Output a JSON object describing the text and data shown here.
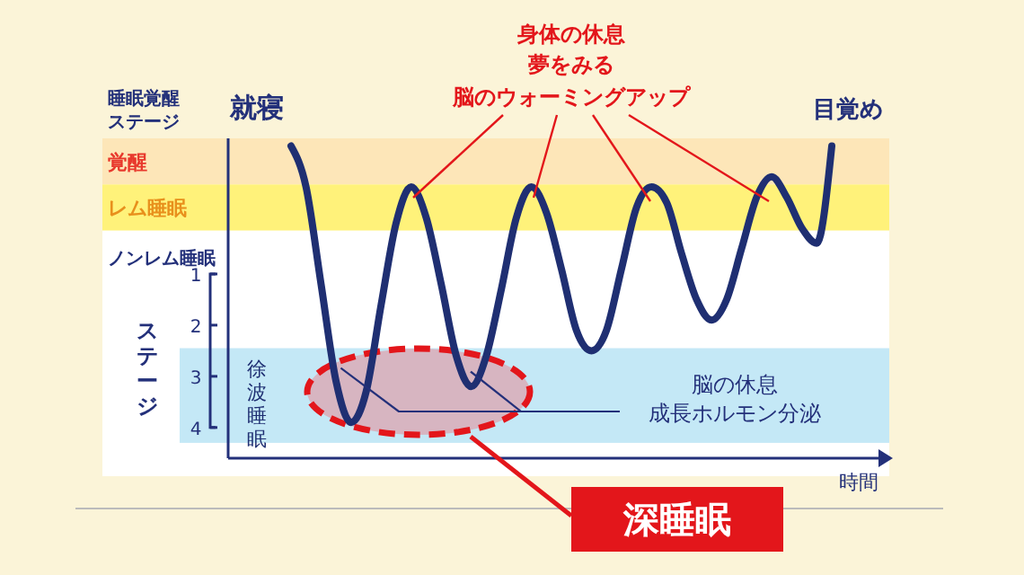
{
  "chart_data": {
    "type": "line",
    "ylabel": "睡眠覚醒ステージ",
    "xlabel": "時間",
    "categories": [
      null,
      null,
      null,
      null,
      null,
      null,
      null,
      null,
      null,
      null,
      null,
      null,
      null,
      null,
      null,
      null,
      null,
      null,
      null,
      null,
      null,
      null,
      null,
      null,
      null,
      null,
      null,
      null,
      null,
      null,
      null,
      null,
      null,
      null,
      null,
      null,
      null
    ],
    "series": [
      {
        "color": "#1f2f72",
        "values": [
          -1.5,
          -0.7,
          1.2,
          3.1,
          3.9,
          3.3,
          1.6,
          0.0,
          -0.7,
          -0.1,
          1.2,
          2.6,
          3.2,
          2.6,
          1.3,
          -0.1,
          -0.7,
          -0.2,
          0.9,
          2.1,
          2.5,
          2.1,
          0.9,
          -0.3,
          -0.7,
          -0.4,
          0.6,
          1.5,
          1.9,
          1.5,
          0.5,
          -0.5,
          -0.9,
          -0.5,
          0.1,
          0.4,
          -1.5
        ]
      }
    ],
    "ylim": [
      4.6,
      -1.65
    ],
    "yticks": [
      1,
      2,
      3,
      4
    ],
    "grid": false,
    "marker": "none",
    "line_style": "solid",
    "bands": [
      {
        "axis": "y",
        "from": -1.65,
        "to": -0.75,
        "label": "覚醒",
        "color": "#fde6b8"
      },
      {
        "axis": "y",
        "from": -0.75,
        "to": 0.15,
        "label": "レム睡眠",
        "color": "#fff27a"
      },
      {
        "axis": "y",
        "from": 2.45,
        "to": 4.3,
        "label": "徐波睡眠",
        "color": "#c4e8f6"
      }
    ],
    "annotations": [
      "就寝",
      "目覚め",
      "身体の休息",
      "夢をみる",
      "脳のウォーミングアップ",
      "ノンレム睡眠",
      "ステージ",
      "脳の休息",
      "成長ホルモン分泌",
      "深睡眠"
    ]
  }
}
